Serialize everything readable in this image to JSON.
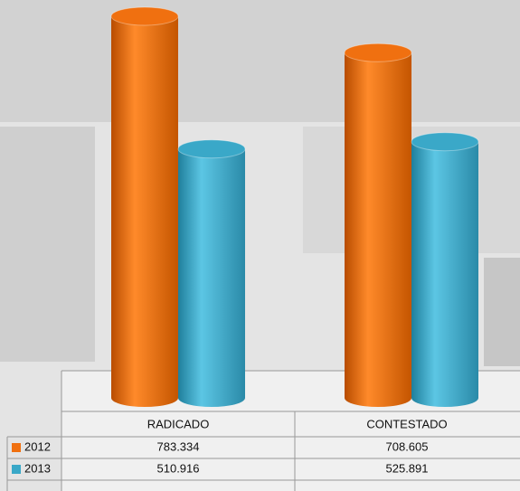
{
  "chart_data": {
    "type": "bar",
    "categories": [
      "RADICADO",
      "CONTESTADO"
    ],
    "series": [
      {
        "name": "2012",
        "color": "#f07010",
        "values": [
          783334,
          708605
        ],
        "value_labels": [
          "783.334",
          "708.605"
        ]
      },
      {
        "name": "2013",
        "color": "#3aa8c8",
        "values": [
          510916,
          525891
        ],
        "value_labels": [
          "510.916",
          "525.891"
        ]
      }
    ]
  }
}
